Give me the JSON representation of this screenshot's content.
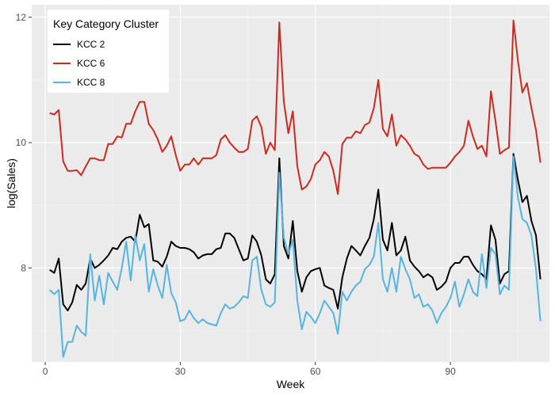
{
  "chart_data": {
    "type": "line",
    "xlabel": "Week",
    "ylabel": "log(Sales)",
    "xlim": [
      -3,
      112
    ],
    "ylim": [
      6.5,
      12.2
    ],
    "x_ticks": [
      0,
      30,
      60,
      90
    ],
    "x_tick_labels": [
      "0",
      "30",
      "60",
      "90"
    ],
    "y_ticks": [
      8,
      10,
      12
    ],
    "y_tick_labels": [
      "8",
      "10",
      "12"
    ],
    "grid": true,
    "legend": {
      "title": "Key Category Cluster",
      "position": "top-left"
    },
    "series": [
      {
        "name": "KCC 2",
        "color": "#000000",
        "x": [
          1,
          2,
          3,
          4,
          5,
          6,
          7,
          8,
          9,
          10,
          11,
          12,
          13,
          14,
          15,
          16,
          17,
          18,
          19,
          20,
          21,
          22,
          23,
          24,
          25,
          26,
          27,
          28,
          29,
          30,
          31,
          32,
          33,
          34,
          35,
          36,
          37,
          38,
          39,
          40,
          41,
          42,
          43,
          44,
          45,
          46,
          47,
          48,
          49,
          50,
          51,
          52,
          53,
          54,
          55,
          56,
          57,
          58,
          59,
          60,
          61,
          62,
          63,
          64,
          65,
          66,
          67,
          68,
          69,
          70,
          71,
          72,
          73,
          74,
          75,
          76,
          77,
          78,
          79,
          80,
          81,
          82,
          83,
          84,
          85,
          86,
          87,
          88,
          89,
          90,
          91,
          92,
          93,
          94,
          95,
          96,
          97,
          98,
          99,
          100,
          101,
          102,
          103,
          104,
          105,
          106,
          107,
          108,
          109,
          110
        ],
        "values": [
          7.97,
          7.92,
          8.15,
          7.42,
          7.32,
          7.45,
          7.73,
          7.65,
          7.75,
          8.15,
          8.0,
          8.05,
          8.12,
          8.2,
          8.32,
          8.3,
          8.42,
          8.48,
          8.5,
          8.42,
          8.85,
          8.65,
          8.7,
          8.12,
          8.1,
          8.02,
          8.18,
          8.42,
          8.35,
          8.32,
          8.32,
          8.3,
          8.25,
          8.15,
          8.2,
          8.22,
          8.22,
          8.3,
          8.32,
          8.55,
          8.55,
          8.48,
          8.3,
          8.12,
          8.15,
          8.52,
          8.42,
          8.2,
          7.82,
          7.75,
          7.9,
          9.75,
          8.35,
          8.15,
          8.75,
          7.95,
          7.62,
          7.85,
          7.95,
          7.98,
          8.0,
          7.72,
          7.68,
          7.65,
          7.35,
          7.85,
          8.15,
          8.35,
          8.28,
          8.2,
          8.35,
          8.48,
          8.78,
          9.25,
          8.45,
          8.28,
          8.72,
          8.2,
          8.28,
          8.5,
          8.12,
          8.02,
          7.95,
          7.85,
          7.9,
          7.85,
          7.65,
          7.7,
          7.78,
          8.0,
          8.08,
          8.08,
          8.18,
          8.18,
          8.05,
          7.95,
          7.9,
          7.82,
          8.68,
          8.45,
          7.75,
          7.9,
          7.95,
          9.82,
          9.4,
          9.05,
          9.15,
          8.75,
          8.52,
          7.82
        ]
      },
      {
        "name": "KCC 6",
        "color": "#cc2a1f",
        "x": [
          1,
          2,
          3,
          4,
          5,
          6,
          7,
          8,
          9,
          10,
          11,
          12,
          13,
          14,
          15,
          16,
          17,
          18,
          19,
          20,
          21,
          22,
          23,
          24,
          25,
          26,
          27,
          28,
          29,
          30,
          31,
          32,
          33,
          34,
          35,
          36,
          37,
          38,
          39,
          40,
          41,
          42,
          43,
          44,
          45,
          46,
          47,
          48,
          49,
          50,
          51,
          52,
          53,
          54,
          55,
          56,
          57,
          58,
          59,
          60,
          61,
          62,
          63,
          64,
          65,
          66,
          67,
          68,
          69,
          70,
          71,
          72,
          73,
          74,
          75,
          76,
          77,
          78,
          79,
          80,
          81,
          82,
          83,
          84,
          85,
          86,
          87,
          88,
          89,
          90,
          91,
          92,
          93,
          94,
          95,
          96,
          97,
          98,
          99,
          100,
          101,
          102,
          103,
          104,
          105,
          106,
          107,
          108,
          109,
          110
        ],
        "values": [
          10.47,
          10.45,
          10.52,
          9.7,
          9.55,
          9.55,
          9.56,
          9.48,
          9.62,
          9.75,
          9.75,
          9.72,
          9.72,
          9.98,
          9.98,
          10.1,
          10.08,
          10.3,
          10.3,
          10.5,
          10.65,
          10.65,
          10.3,
          10.2,
          10.05,
          9.85,
          9.95,
          10.1,
          9.8,
          9.55,
          9.65,
          9.65,
          9.75,
          9.65,
          9.75,
          9.75,
          9.75,
          9.8,
          10.05,
          10.12,
          10.0,
          9.92,
          9.85,
          9.85,
          9.9,
          10.35,
          10.42,
          10.25,
          9.82,
          10.0,
          9.88,
          11.92,
          10.65,
          10.15,
          10.5,
          9.62,
          9.25,
          9.3,
          9.42,
          9.65,
          9.72,
          9.85,
          9.78,
          9.55,
          9.18,
          9.98,
          10.08,
          10.08,
          10.18,
          10.15,
          10.28,
          10.32,
          10.55,
          11.0,
          10.22,
          10.1,
          10.45,
          9.95,
          10.12,
          10.05,
          9.95,
          9.82,
          9.78,
          9.65,
          9.58,
          9.6,
          9.6,
          9.6,
          9.6,
          9.68,
          9.78,
          9.85,
          9.95,
          10.35,
          10.1,
          9.9,
          9.95,
          9.78,
          10.82,
          10.35,
          9.82,
          9.88,
          9.92,
          11.95,
          11.3,
          10.8,
          10.95,
          10.55,
          10.2,
          9.68
        ]
      },
      {
        "name": "KCC 8",
        "color": "#56b4e0",
        "x": [
          1,
          2,
          3,
          4,
          5,
          6,
          7,
          8,
          9,
          10,
          11,
          12,
          13,
          14,
          15,
          16,
          17,
          18,
          19,
          20,
          21,
          22,
          23,
          24,
          25,
          26,
          27,
          28,
          29,
          30,
          31,
          32,
          33,
          34,
          35,
          36,
          37,
          38,
          39,
          40,
          41,
          42,
          43,
          44,
          45,
          46,
          47,
          48,
          49,
          50,
          51,
          52,
          53,
          54,
          55,
          56,
          57,
          58,
          59,
          60,
          61,
          62,
          63,
          64,
          65,
          66,
          67,
          68,
          69,
          70,
          71,
          72,
          73,
          74,
          75,
          76,
          77,
          78,
          79,
          80,
          81,
          82,
          83,
          84,
          85,
          86,
          87,
          88,
          89,
          90,
          91,
          92,
          93,
          94,
          95,
          96,
          97,
          98,
          99,
          100,
          101,
          102,
          103,
          104,
          105,
          106,
          107,
          108,
          109,
          110
        ],
        "values": [
          7.65,
          7.58,
          7.65,
          6.58,
          6.82,
          6.82,
          7.08,
          6.98,
          6.92,
          8.22,
          7.48,
          7.88,
          7.42,
          7.92,
          7.78,
          7.65,
          8.0,
          8.42,
          7.8,
          8.52,
          8.12,
          8.38,
          7.62,
          7.98,
          7.72,
          7.52,
          8.05,
          7.6,
          7.45,
          7.15,
          7.18,
          7.32,
          7.2,
          7.12,
          7.18,
          7.12,
          7.1,
          7.08,
          7.28,
          7.42,
          7.35,
          7.38,
          7.45,
          7.55,
          7.52,
          8.12,
          8.18,
          7.65,
          7.42,
          7.38,
          7.45,
          9.52,
          8.48,
          8.22,
          8.45,
          7.48,
          7.02,
          7.3,
          7.22,
          7.12,
          7.28,
          7.48,
          7.38,
          7.28,
          6.95,
          7.62,
          7.48,
          7.62,
          7.72,
          7.78,
          7.98,
          8.05,
          8.18,
          8.72,
          7.82,
          7.62,
          8.0,
          7.62,
          8.18,
          7.98,
          7.82,
          7.52,
          7.58,
          7.38,
          7.42,
          7.32,
          7.12,
          7.28,
          7.38,
          7.52,
          7.78,
          7.38,
          7.58,
          7.82,
          7.62,
          7.55,
          8.22,
          7.68,
          8.32,
          8.22,
          7.58,
          7.72,
          7.65,
          9.78,
          9.12,
          8.78,
          8.72,
          8.52,
          7.98,
          7.15
        ]
      }
    ]
  }
}
